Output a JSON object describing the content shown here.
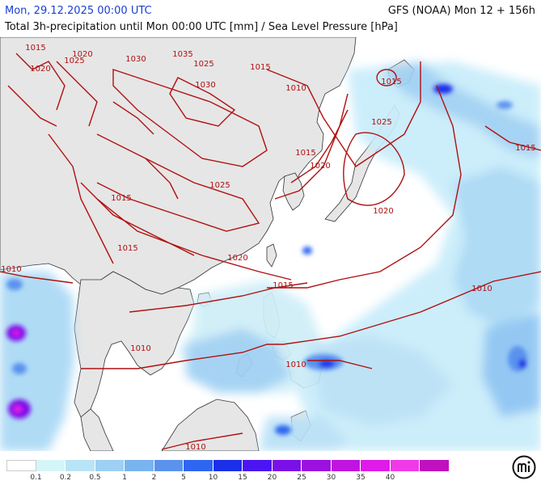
{
  "header": {
    "valid_time": "Mon, 29.12.2025 00:00 UTC",
    "model_run": "GFS (NOAA) Mon 12 + 156h",
    "description": "Total 3h-precipitation until Mon 00:00 UTC [mm] / Sea Level Pressure [hPa]"
  },
  "colors": {
    "land": "#e6e6e6",
    "sea": "#ffffff",
    "isobar": "#b01010",
    "coast": "#333333"
  },
  "isobar_labels": [
    "1015",
    "1020",
    "1025",
    "1030",
    "1035",
    "1020",
    "1025",
    "1030",
    "1015",
    "1010",
    "1025",
    "1015",
    "1020",
    "1025",
    "1020",
    "1015",
    "1015",
    "1020",
    "1015",
    "1010",
    "1010",
    "1010",
    "1010",
    "1015",
    "1015"
  ],
  "legend": {
    "colors": [
      "#ffffff",
      "#d4f6f7",
      "#b8e4f5",
      "#9dd0f3",
      "#79b4f0",
      "#5a92ee",
      "#2f66f0",
      "#1a2fe8",
      "#4b14f2",
      "#7a10e8",
      "#9c10e0",
      "#c014e0",
      "#e01ae8",
      "#f03ae8",
      "#c010c0"
    ],
    "ticks": [
      "0.1",
      "0.2",
      "0.5",
      "1",
      "2",
      "5",
      "10",
      "15",
      "20",
      "25",
      "30",
      "35",
      "40"
    ]
  },
  "logo": "meteologix-logo-icon"
}
